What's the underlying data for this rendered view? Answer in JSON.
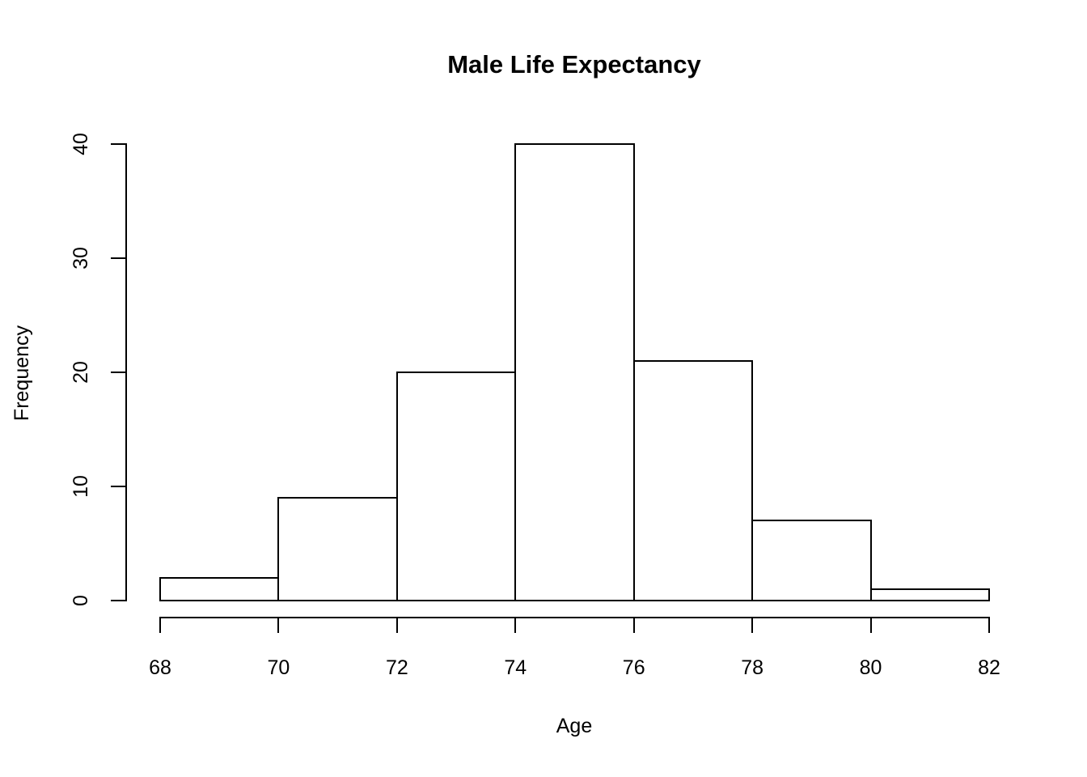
{
  "chart_data": {
    "type": "bar",
    "subtype": "histogram",
    "title": "Male Life Expectancy",
    "xlabel": "Age",
    "ylabel": "Frequency",
    "bins": [
      [
        68,
        70
      ],
      [
        70,
        72
      ],
      [
        72,
        74
      ],
      [
        74,
        76
      ],
      [
        76,
        78
      ],
      [
        78,
        80
      ],
      [
        80,
        82
      ]
    ],
    "values": [
      2,
      9,
      20,
      40,
      21,
      7,
      1
    ],
    "x_ticks": [
      68,
      70,
      72,
      74,
      76,
      78,
      80,
      82
    ],
    "y_ticks": [
      0,
      10,
      20,
      30,
      40
    ],
    "xlim": [
      68,
      82
    ],
    "ylim": [
      0,
      40
    ],
    "grid": false,
    "legend": null,
    "bar_fill": "#ffffff",
    "bar_border": "#000000",
    "background": "#ffffff",
    "text_color": "#000000"
  }
}
